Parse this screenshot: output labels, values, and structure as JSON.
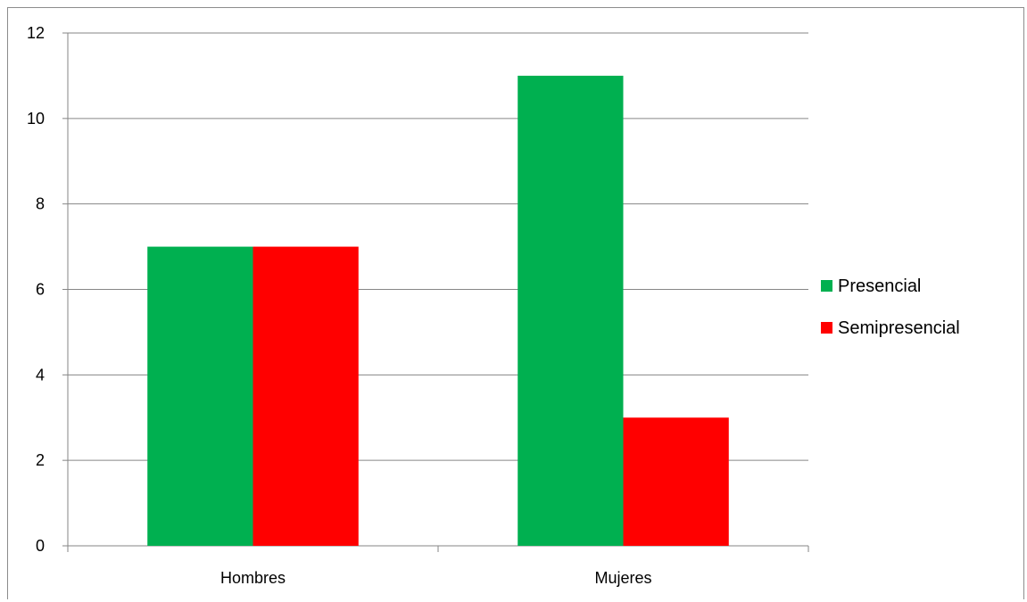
{
  "chart_data": {
    "type": "bar",
    "categories": [
      "Hombres",
      "Mujeres"
    ],
    "series": [
      {
        "name": "Presencial",
        "values": [
          7,
          11
        ],
        "color": "#00B050"
      },
      {
        "name": "Semipresencial",
        "values": [
          7,
          3
        ],
        "color": "#FF0000"
      }
    ],
    "title": "",
    "xlabel": "",
    "ylabel": "",
    "ylim": [
      0,
      12
    ],
    "yticks": [
      "0",
      "2",
      "4",
      "6",
      "8",
      "10",
      "12"
    ],
    "grid": true,
    "legend_position": "right"
  }
}
